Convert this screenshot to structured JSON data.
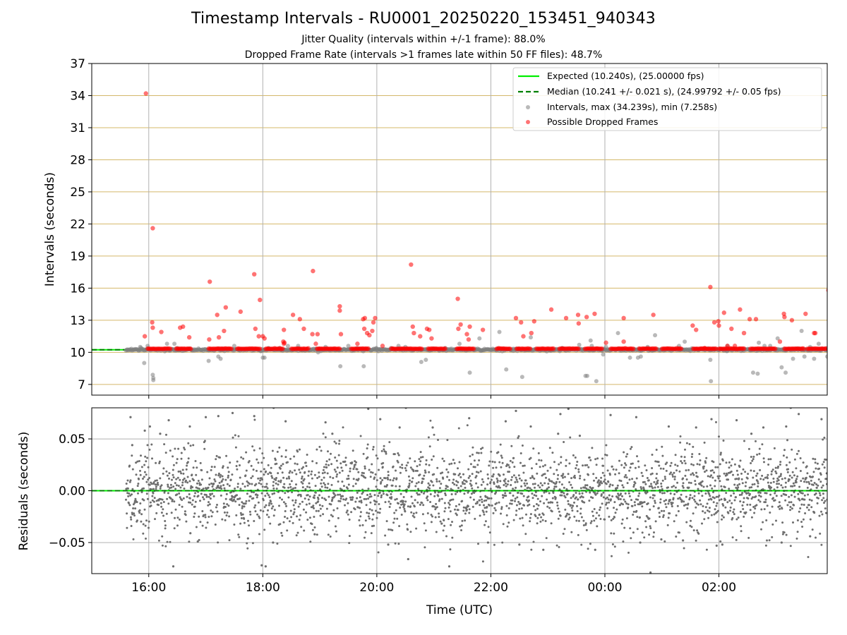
{
  "title": "Timestamp Intervals - RU0001_20250220_153451_940343",
  "subtitle_jitter": "Jitter Quality (intervals within +/-1 frame): 88.0%",
  "subtitle_dropped": "Dropped Frame Rate (intervals >1 frames late within 50 FF files): 48.7%",
  "colors": {
    "expected": "#00ee00",
    "median": "#008000",
    "intervals": "#808080",
    "dropped": "#ff0000",
    "hgrid_top": "#d4b86a",
    "grid": "#b0b0b0",
    "residuals": "#6e6e6e"
  },
  "chart_data": [
    {
      "type": "scatter",
      "panel": "intervals",
      "ylabel": "Intervals (seconds)",
      "ylim": [
        6,
        37
      ],
      "yticks": [
        7,
        10,
        13,
        16,
        19,
        22,
        25,
        28,
        31,
        34,
        37
      ],
      "ytick_labels": [
        "7",
        "10",
        "13",
        "16",
        "19",
        "22",
        "25",
        "28",
        "31",
        "34",
        "37"
      ],
      "xlim_hours": [
        15.0,
        27.9
      ],
      "xticks_hours": [
        16,
        18,
        20,
        22,
        24,
        26
      ],
      "grid": "horizontal and vertical",
      "legend_position": "top-right",
      "legend": [
        "Expected (10.240s), (25.00000 fps)",
        "Median (10.241 +/- 0.021 s), (24.99792 +/- 0.05 fps)",
        "Intervals, max (34.239s), min (7.258s)",
        "Possible Dropped Frames"
      ],
      "expected_interval": 10.24,
      "median_interval": 10.241,
      "max_interval": 34.239,
      "min_interval": 7.258,
      "dropped_frames": [
        [
          15.95,
          34.2
        ],
        [
          16.07,
          21.6
        ],
        [
          16.06,
          12.8
        ],
        [
          16.07,
          12.3
        ],
        [
          15.93,
          11.5
        ],
        [
          16.22,
          11.9
        ],
        [
          16.55,
          12.3
        ],
        [
          16.6,
          12.4
        ],
        [
          16.71,
          11.4
        ],
        [
          17.07,
          16.6
        ],
        [
          17.06,
          11.2
        ],
        [
          17.23,
          11.4
        ],
        [
          17.2,
          13.5
        ],
        [
          17.32,
          12.0
        ],
        [
          17.35,
          14.2
        ],
        [
          17.61,
          13.8
        ],
        [
          17.85,
          17.3
        ],
        [
          17.95,
          14.9
        ],
        [
          17.87,
          12.2
        ],
        [
          17.93,
          11.5
        ],
        [
          18.0,
          11.5
        ],
        [
          18.03,
          11.3
        ],
        [
          18.36,
          11.0
        ],
        [
          18.37,
          10.8
        ],
        [
          18.38,
          10.9
        ],
        [
          18.37,
          12.1
        ],
        [
          18.53,
          13.5
        ],
        [
          18.65,
          13.1
        ],
        [
          18.72,
          12.2
        ],
        [
          18.88,
          17.6
        ],
        [
          18.87,
          11.7
        ],
        [
          18.96,
          11.7
        ],
        [
          18.93,
          10.8
        ],
        [
          19.37,
          11.7
        ],
        [
          19.35,
          14.3
        ],
        [
          19.35,
          13.9
        ],
        [
          19.66,
          10.8
        ],
        [
          19.76,
          13.1
        ],
        [
          19.79,
          13.2
        ],
        [
          19.78,
          12.2
        ],
        [
          19.83,
          11.8
        ],
        [
          19.87,
          11.6
        ],
        [
          19.92,
          12.0
        ],
        [
          19.94,
          12.8
        ],
        [
          19.97,
          13.2
        ],
        [
          20.1,
          10.6
        ],
        [
          20.6,
          18.2
        ],
        [
          20.63,
          12.4
        ],
        [
          20.65,
          11.8
        ],
        [
          20.76,
          11.5
        ],
        [
          20.88,
          12.2
        ],
        [
          20.92,
          12.1
        ],
        [
          20.96,
          11.3
        ],
        [
          21.42,
          15.0
        ],
        [
          21.43,
          12.2
        ],
        [
          21.47,
          12.6
        ],
        [
          21.58,
          11.7
        ],
        [
          21.63,
          12.4
        ],
        [
          21.61,
          11.2
        ],
        [
          21.86,
          12.1
        ],
        [
          22.44,
          13.2
        ],
        [
          22.53,
          12.8
        ],
        [
          22.57,
          11.5
        ],
        [
          22.71,
          11.8
        ],
        [
          22.76,
          12.9
        ],
        [
          23.06,
          14.0
        ],
        [
          23.32,
          13.2
        ],
        [
          23.53,
          13.5
        ],
        [
          23.54,
          12.7
        ],
        [
          23.68,
          13.3
        ],
        [
          23.82,
          13.6
        ],
        [
          24.02,
          10.9
        ],
        [
          24.33,
          11.0
        ],
        [
          24.33,
          13.2
        ],
        [
          24.85,
          13.5
        ],
        [
          25.54,
          12.5
        ],
        [
          25.6,
          12.1
        ],
        [
          25.75,
          10.4
        ],
        [
          25.85,
          16.1
        ],
        [
          25.92,
          12.8
        ],
        [
          25.99,
          12.9
        ],
        [
          26.0,
          12.5
        ],
        [
          26.09,
          13.7
        ],
        [
          26.15,
          10.6
        ],
        [
          26.22,
          12.2
        ],
        [
          26.28,
          10.6
        ],
        [
          26.37,
          14.0
        ],
        [
          26.44,
          11.8
        ],
        [
          26.54,
          13.1
        ],
        [
          26.65,
          13.1
        ],
        [
          27.07,
          11.0
        ],
        [
          27.14,
          13.6
        ],
        [
          27.15,
          13.3
        ],
        [
          27.28,
          13.0
        ],
        [
          27.52,
          13.6
        ],
        [
          27.67,
          11.8
        ],
        [
          27.69,
          11.8
        ],
        [
          27.92,
          15.8
        ]
      ],
      "intervals_outliers": [
        [
          15.85,
          10.5
        ],
        [
          15.92,
          9.0
        ],
        [
          15.98,
          10.6
        ],
        [
          16.07,
          7.9
        ],
        [
          16.08,
          7.6
        ],
        [
          16.08,
          7.4
        ],
        [
          16.28,
          10.1
        ],
        [
          16.32,
          10.8
        ],
        [
          16.45,
          10.8
        ],
        [
          16.5,
          10.4
        ],
        [
          17.05,
          9.2
        ],
        [
          17.22,
          9.6
        ],
        [
          17.26,
          9.4
        ],
        [
          17.29,
          10.3
        ],
        [
          17.5,
          10.6
        ],
        [
          18.0,
          9.5
        ],
        [
          18.03,
          9.5
        ],
        [
          18.1,
          10.4
        ],
        [
          18.3,
          10.4
        ],
        [
          18.44,
          10.6
        ],
        [
          18.62,
          10.6
        ],
        [
          18.97,
          10.0
        ],
        [
          19.1,
          10.5
        ],
        [
          19.36,
          8.7
        ],
        [
          19.5,
          10.6
        ],
        [
          19.77,
          8.7
        ],
        [
          19.99,
          10.4
        ],
        [
          20.25,
          10.4
        ],
        [
          20.38,
          10.6
        ],
        [
          20.5,
          10.5
        ],
        [
          20.78,
          9.1
        ],
        [
          20.86,
          9.3
        ],
        [
          21.2,
          10.4
        ],
        [
          21.45,
          10.8
        ],
        [
          21.63,
          8.1
        ],
        [
          21.8,
          11.3
        ],
        [
          22.15,
          11.9
        ],
        [
          22.27,
          8.4
        ],
        [
          22.55,
          7.7
        ],
        [
          22.7,
          11.4
        ],
        [
          23.25,
          10.4
        ],
        [
          23.55,
          10.7
        ],
        [
          23.66,
          7.8
        ],
        [
          23.69,
          7.8
        ],
        [
          23.75,
          11.1
        ],
        [
          23.77,
          10.6
        ],
        [
          23.85,
          7.3
        ],
        [
          23.97,
          9.8
        ],
        [
          24.02,
          10.5
        ],
        [
          24.23,
          11.8
        ],
        [
          24.44,
          9.5
        ],
        [
          24.58,
          9.5
        ],
        [
          24.63,
          9.6
        ],
        [
          24.75,
          10.5
        ],
        [
          24.88,
          11.6
        ],
        [
          25.3,
          10.6
        ],
        [
          25.4,
          11.0
        ],
        [
          25.85,
          9.3
        ],
        [
          25.86,
          7.3
        ],
        [
          26.15,
          10.6
        ],
        [
          26.6,
          8.1
        ],
        [
          26.68,
          8.0
        ],
        [
          26.7,
          10.9
        ],
        [
          26.8,
          10.6
        ],
        [
          26.9,
          10.6
        ],
        [
          26.95,
          10.3
        ],
        [
          27.03,
          11.3
        ],
        [
          27.1,
          8.6
        ],
        [
          27.17,
          8.1
        ],
        [
          27.3,
          9.4
        ],
        [
          27.45,
          12.0
        ],
        [
          27.5,
          9.6
        ],
        [
          27.6,
          10.5
        ],
        [
          27.67,
          9.4
        ],
        [
          27.75,
          10.8
        ],
        [
          27.9,
          9.6
        ]
      ]
    },
    {
      "type": "scatter",
      "panel": "residuals",
      "xlabel": "Time (UTC)",
      "ylabel": "Residuals (seconds)",
      "ylim": [
        -0.08,
        0.08
      ],
      "yticks": [
        -0.05,
        0.0,
        0.05
      ],
      "ytick_labels": [
        "−0.05",
        "0.00",
        "0.05"
      ],
      "xticks_hours": [
        16,
        18,
        20,
        22,
        24,
        26
      ],
      "xtick_labels": [
        "16:00",
        "18:00",
        "20:00",
        "22:00",
        "00:00",
        "02:00"
      ],
      "grid": "horizontal and vertical",
      "residual_core_std": 0.021,
      "residuals_shown": [
        [
          15.68,
          0.071
        ],
        [
          15.71,
          0.044
        ],
        [
          15.93,
          0.058
        ],
        [
          16.02,
          0.062
        ],
        [
          16.2,
          0.055
        ],
        [
          16.35,
          0.068
        ],
        [
          16.72,
          0.062
        ],
        [
          16.73,
          -0.041
        ],
        [
          16.86,
          -0.049
        ],
        [
          17.0,
          0.071
        ],
        [
          17.22,
          0.072
        ],
        [
          17.47,
          0.075
        ],
        [
          17.74,
          -0.046
        ],
        [
          17.85,
          0.072
        ],
        [
          17.98,
          -0.072
        ],
        [
          18.19,
          0.08
        ],
        [
          18.18,
          -0.05
        ],
        [
          18.4,
          0.067
        ],
        [
          18.91,
          -0.042
        ],
        [
          19.1,
          0.066
        ],
        [
          19.22,
          0.055
        ],
        [
          19.85,
          0.079
        ],
        [
          20.06,
          0.069
        ],
        [
          20.2,
          -0.052
        ],
        [
          20.4,
          0.061
        ],
        [
          20.55,
          -0.066
        ],
        [
          20.98,
          0.061
        ],
        [
          21.27,
          -0.073
        ],
        [
          21.62,
          0.07
        ],
        [
          21.95,
          -0.05
        ],
        [
          22.26,
          0.067
        ],
        [
          22.44,
          0.077
        ],
        [
          22.5,
          -0.052
        ],
        [
          22.7,
          0.062
        ],
        [
          22.92,
          -0.057
        ],
        [
          23.18,
          0.055
        ],
        [
          23.22,
          0.074
        ],
        [
          23.56,
          0.053
        ],
        [
          23.83,
          -0.057
        ],
        [
          24.1,
          0.073
        ],
        [
          24.55,
          0.071
        ],
        [
          24.62,
          -0.05
        ],
        [
          24.99,
          -0.047
        ],
        [
          25.12,
          0.062
        ],
        [
          25.37,
          -0.048
        ],
        [
          25.6,
          0.061
        ],
        [
          25.87,
          0.069
        ],
        [
          25.96,
          -0.053
        ],
        [
          26.31,
          0.068
        ],
        [
          26.57,
          0.055
        ],
        [
          26.78,
          0.061
        ],
        [
          27.1,
          -0.05
        ],
        [
          27.18,
          0.062
        ],
        [
          27.4,
          0.074
        ],
        [
          27.6,
          -0.044
        ],
        [
          27.8,
          0.069
        ],
        [
          16.43,
          -0.073
        ],
        [
          18.05,
          -0.073
        ],
        [
          20.51,
          0.08
        ],
        [
          23.36,
          0.079
        ],
        [
          24.8,
          -0.079
        ],
        [
          27.26,
          0.08
        ],
        [
          26.06,
          -0.052
        ]
      ]
    }
  ]
}
